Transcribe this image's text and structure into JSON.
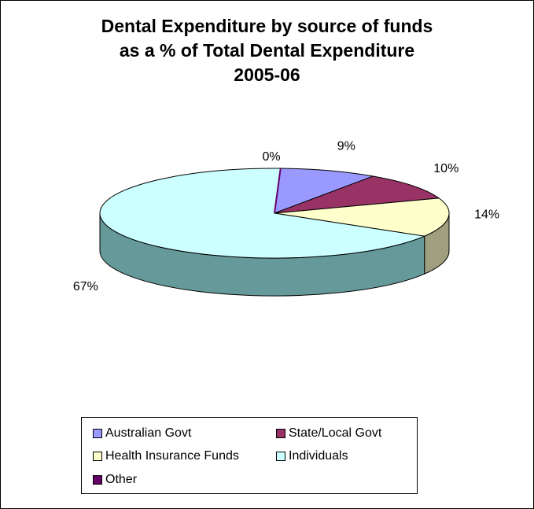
{
  "chart_data": {
    "type": "pie",
    "title": "Dental Expenditure by source of funds as a % of Total Dental Expenditure 2005-06",
    "title_lines": [
      "Dental Expenditure by source of funds",
      "as a % of Total Dental Expenditure",
      "2005-06"
    ],
    "slices": [
      {
        "name": "Australian Govt",
        "value": 9,
        "label": "9%",
        "color": "#9999ff",
        "side_color": "#66669f"
      },
      {
        "name": "State/Local Govt",
        "value": 10,
        "label": "10%",
        "color": "#993366",
        "side_color": "#5f2040"
      },
      {
        "name": "Health Insurance Funds",
        "value": 14,
        "label": "14%",
        "color": "#ffffcc",
        "side_color": "#9f9f7f"
      },
      {
        "name": "Individuals",
        "value": 67,
        "label": "67%",
        "color": "#ccffff",
        "side_color": "#669999"
      },
      {
        "name": "Other",
        "value": 0,
        "label": "0%",
        "color": "#660066",
        "side_color": "#400040"
      }
    ],
    "legend_position": "bottom",
    "three_d": true
  }
}
